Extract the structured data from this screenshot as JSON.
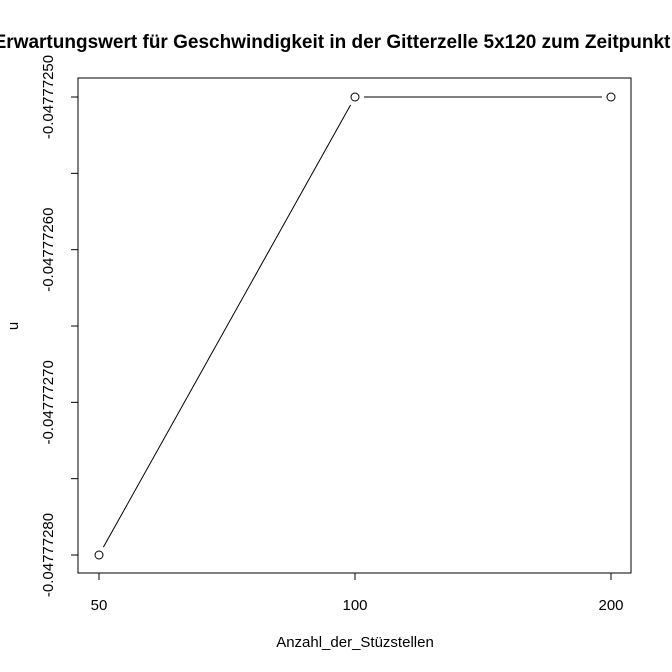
{
  "chart_data": {
    "type": "line",
    "title": "Erwartungswert für Geschwindigkeit in der Gitterzelle 5x120 zum Zeitpunkt",
    "xlabel": "Anzahl_der_Stüzstellen",
    "ylabel": "u",
    "categories": [
      "50",
      "100",
      "200"
    ],
    "x": [
      50,
      100,
      200
    ],
    "values": [
      -0.0477728,
      -0.0477725,
      -0.0477725
    ],
    "y_ticks": [
      -0.0477728,
      -0.0477727,
      -0.0477726,
      -0.0477725
    ],
    "y_tick_labels": [
      "-0.04777280",
      "-0.04777270",
      "-0.04777260",
      "-0.04777250"
    ],
    "ylim": [
      -0.04777283,
      -0.047772487
    ],
    "markers": "open-circle",
    "line_color": "#000000",
    "grid": false,
    "legend": "none"
  }
}
